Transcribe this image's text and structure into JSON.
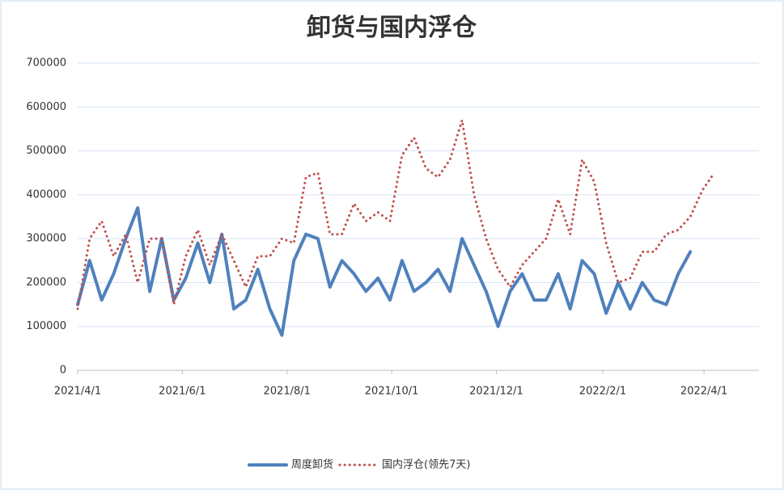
{
  "chart_data": {
    "type": "line",
    "title": "卸货与国内浮仓",
    "xlim": [
      "2021/4/1",
      "2022/5/3"
    ],
    "xticks": [
      "2021/4/1",
      "2021/6/1",
      "2021/8/1",
      "2021/10/1",
      "2021/12/1",
      "2022/2/1",
      "2022/4/1"
    ],
    "ylim": [
      0,
      700000
    ],
    "yticks": [
      0,
      100000,
      200000,
      300000,
      400000,
      500000,
      600000,
      700000
    ],
    "grid": true,
    "legend": "bottom",
    "series": [
      {
        "name": "周度卸货",
        "color": "#4f81bd",
        "style": "solid",
        "x": [
          "2021/4/1",
          "2021/4/8",
          "2021/4/15",
          "2021/4/22",
          "2021/4/29",
          "2021/5/6",
          "2021/5/13",
          "2021/5/20",
          "2021/5/27",
          "2021/6/3",
          "2021/6/10",
          "2021/6/17",
          "2021/6/24",
          "2021/7/1",
          "2021/7/8",
          "2021/7/15",
          "2021/7/22",
          "2021/7/29",
          "2021/8/5",
          "2021/8/12",
          "2021/8/19",
          "2021/8/26",
          "2021/9/2",
          "2021/9/9",
          "2021/9/16",
          "2021/9/23",
          "2021/9/30",
          "2021/10/7",
          "2021/10/14",
          "2021/10/21",
          "2021/10/28",
          "2021/11/4",
          "2021/11/11",
          "2021/11/18",
          "2021/11/25",
          "2021/12/2",
          "2021/12/9",
          "2021/12/16",
          "2021/12/23",
          "2021/12/30",
          "2022/1/6",
          "2022/1/13",
          "2022/1/20",
          "2022/1/27",
          "2022/2/3",
          "2022/2/10",
          "2022/2/17",
          "2022/2/24",
          "2022/3/3",
          "2022/3/10",
          "2022/3/17",
          "2022/3/24"
        ],
        "values": [
          150000,
          250000,
          160000,
          220000,
          300000,
          370000,
          180000,
          300000,
          160000,
          210000,
          290000,
          200000,
          310000,
          140000,
          160000,
          230000,
          140000,
          80000,
          250000,
          310000,
          300000,
          190000,
          250000,
          220000,
          180000,
          210000,
          160000,
          250000,
          180000,
          200000,
          230000,
          180000,
          300000,
          240000,
          180000,
          100000,
          180000,
          220000,
          160000,
          160000,
          220000,
          140000,
          250000,
          220000,
          130000,
          200000,
          140000,
          200000,
          160000,
          150000,
          220000,
          270000
        ]
      },
      {
        "name": "国内浮仓(领先7天)",
        "color": "#c0504d",
        "style": "dotted",
        "x": [
          "2021/4/1",
          "2021/4/8",
          "2021/4/15",
          "2021/4/22",
          "2021/4/29",
          "2021/5/6",
          "2021/5/13",
          "2021/5/20",
          "2021/5/27",
          "2021/6/3",
          "2021/6/10",
          "2021/6/17",
          "2021/6/24",
          "2021/7/1",
          "2021/7/8",
          "2021/7/15",
          "2021/7/22",
          "2021/7/29",
          "2021/8/5",
          "2021/8/12",
          "2021/8/19",
          "2021/8/26",
          "2021/9/2",
          "2021/9/9",
          "2021/9/16",
          "2021/9/23",
          "2021/9/30",
          "2021/10/7",
          "2021/10/14",
          "2021/10/21",
          "2021/10/28",
          "2021/11/4",
          "2021/11/11",
          "2021/11/18",
          "2021/11/25",
          "2021/12/2",
          "2021/12/9",
          "2021/12/16",
          "2021/12/23",
          "2021/12/30",
          "2022/1/6",
          "2022/1/13",
          "2022/1/20",
          "2022/1/27",
          "2022/2/3",
          "2022/2/10",
          "2022/2/17",
          "2022/2/24",
          "2022/3/3",
          "2022/3/10",
          "2022/3/17",
          "2022/3/24",
          "2022/3/31",
          "2022/4/7"
        ],
        "values": [
          140000,
          300000,
          340000,
          260000,
          310000,
          200000,
          300000,
          300000,
          150000,
          260000,
          320000,
          240000,
          310000,
          250000,
          190000,
          260000,
          260000,
          300000,
          290000,
          440000,
          450000,
          310000,
          310000,
          380000,
          340000,
          360000,
          340000,
          490000,
          530000,
          460000,
          440000,
          480000,
          570000,
          400000,
          300000,
          230000,
          190000,
          240000,
          270000,
          300000,
          390000,
          310000,
          480000,
          430000,
          290000,
          200000,
          210000,
          270000,
          270000,
          310000,
          320000,
          350000,
          410000,
          450000
        ]
      }
    ]
  }
}
